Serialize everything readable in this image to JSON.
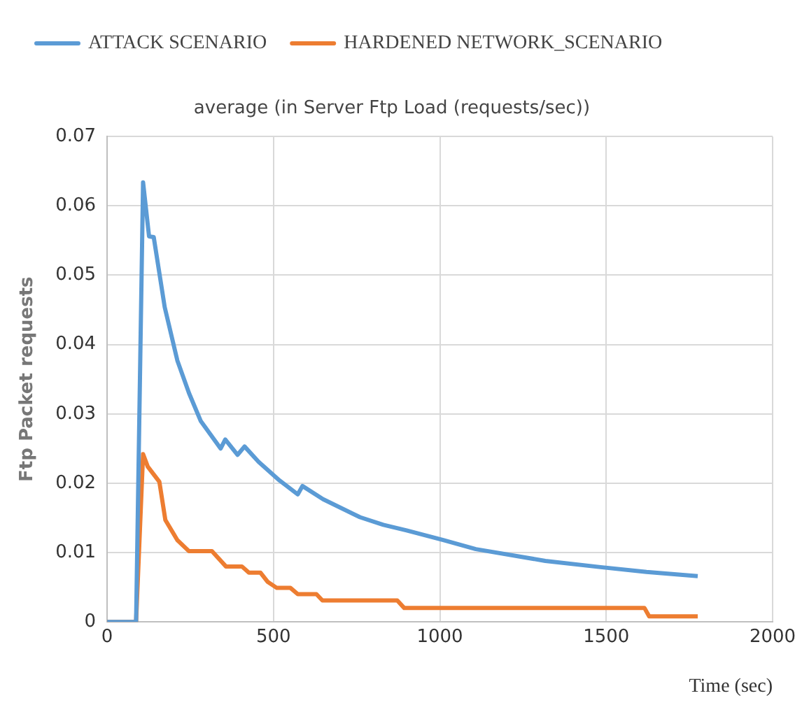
{
  "chart_data": {
    "type": "line",
    "title": "average (in Server Ftp Load (requests/sec))",
    "xlabel": "Time (sec)",
    "ylabel": "Ftp Packet requests",
    "xlim": [
      0,
      2000
    ],
    "xticks": [
      0,
      500,
      1000,
      1500,
      2000
    ],
    "ylim": [
      0,
      0.07
    ],
    "yticks": [
      0,
      0.01,
      0.02,
      0.03,
      0.04,
      0.05,
      0.06,
      0.07
    ],
    "grid": true,
    "legend": "top left",
    "marker": "none",
    "line_style": "solid",
    "series": [
      {
        "name": "ATTACK SCENARIO",
        "color": "#5b9bd5",
        "x": [
          0,
          87,
          108,
          126,
          140,
          173,
          211,
          246,
          281,
          341,
          355,
          392,
          413,
          455,
          518,
          573,
          587,
          649,
          760,
          830,
          900,
          1010,
          1108,
          1317,
          1483,
          1621,
          1775
        ],
        "values": [
          0,
          0,
          0.0634,
          0.0556,
          0.0555,
          0.0454,
          0.0377,
          0.033,
          0.029,
          0.025,
          0.0263,
          0.0241,
          0.0253,
          0.0231,
          0.0204,
          0.0184,
          0.0196,
          0.0177,
          0.0151,
          0.014,
          0.0132,
          0.0118,
          0.0105,
          0.0088,
          0.0079,
          0.0072,
          0.0066
        ]
      },
      {
        "name": "HARDENED NETWORK_SCENARIO",
        "color": "#ed7d31",
        "x": [
          0,
          87,
          108,
          122,
          157,
          175,
          211,
          246,
          315,
          357,
          405,
          426,
          461,
          482,
          510,
          551,
          573,
          629,
          647,
          872,
          893,
          1615,
          1629,
          1775
        ],
        "values": [
          0,
          0,
          0.0242,
          0.0224,
          0.0202,
          0.0147,
          0.0118,
          0.0102,
          0.0102,
          0.008,
          0.008,
          0.0071,
          0.0071,
          0.0058,
          0.0049,
          0.0049,
          0.004,
          0.004,
          0.0031,
          0.0031,
          0.002,
          0.002,
          0.0008,
          0.0008
        ]
      }
    ]
  }
}
